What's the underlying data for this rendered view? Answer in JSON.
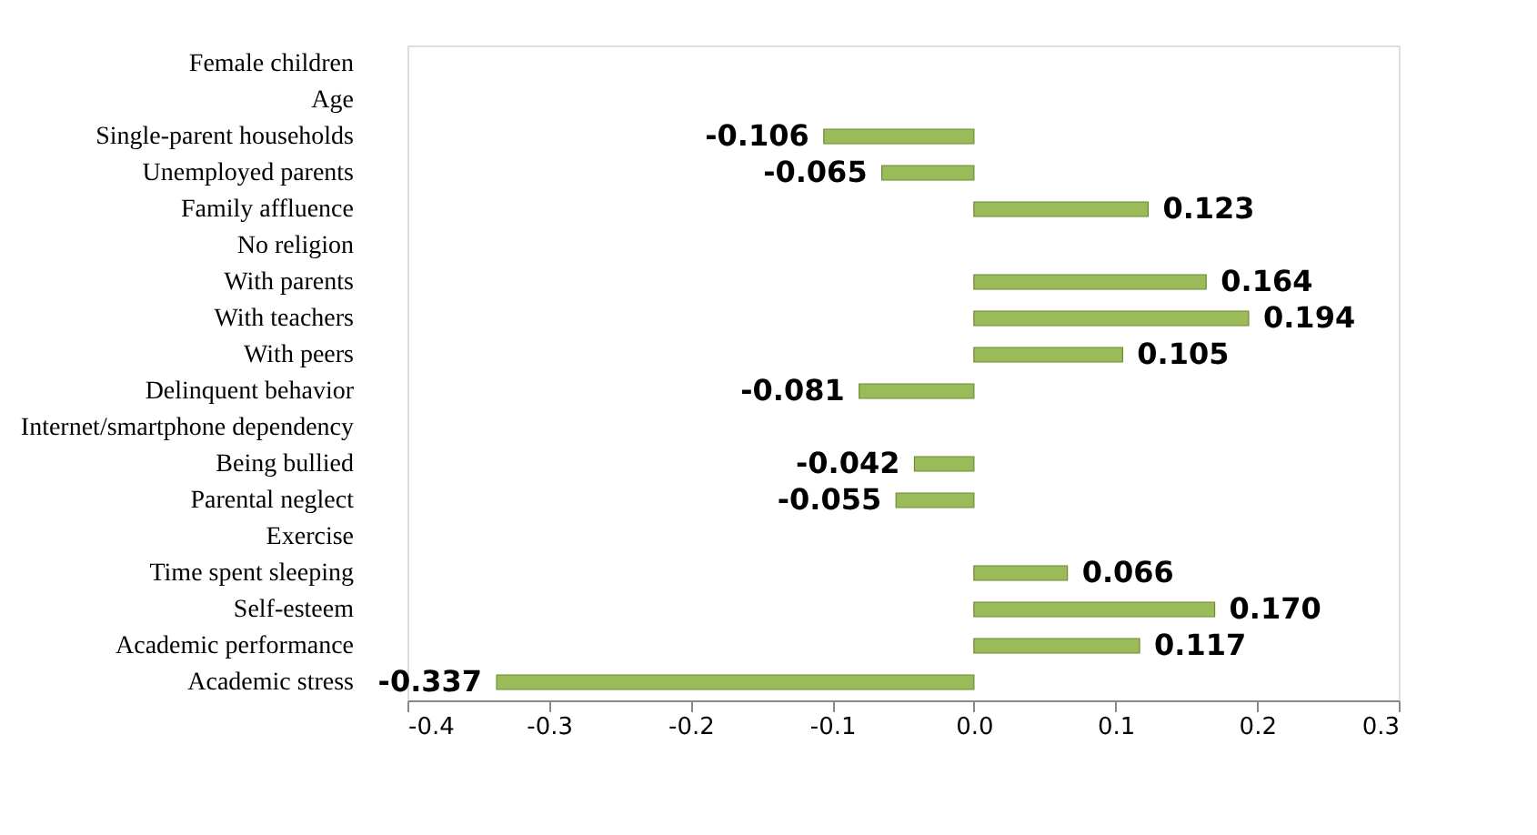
{
  "chart_data": {
    "type": "bar",
    "orientation": "horizontal",
    "categories": [
      "Female children",
      "Age",
      "Single-parent households",
      "Unemployed parents",
      "Family affluence",
      "No religion",
      "With parents",
      "With teachers",
      "With peers",
      "Delinquent behavior",
      "Internet/smartphone dependency",
      "Being bullied",
      "Parental neglect",
      "Exercise",
      "Time spent sleeping",
      "Self-esteem",
      "Academic performance",
      "Academic stress"
    ],
    "values": [
      null,
      null,
      -0.106,
      -0.065,
      0.123,
      null,
      0.164,
      0.194,
      0.105,
      -0.081,
      null,
      -0.042,
      -0.055,
      null,
      0.066,
      0.17,
      0.117,
      -0.337
    ],
    "value_labels": [
      null,
      null,
      "-0.106",
      "-0.065",
      "0.123",
      null,
      "0.164",
      "0.194",
      "0.105",
      "-0.081",
      null,
      "-0.042",
      "-0.055",
      null,
      "0.066",
      "0.170",
      "0.117",
      "-0.337"
    ],
    "color": "#9bbb59",
    "xlim": [
      -0.4,
      0.3
    ],
    "xticks": [
      {
        "value": -0.4,
        "label": "-0.4"
      },
      {
        "value": -0.3,
        "label": "-0.3"
      },
      {
        "value": -0.2,
        "label": "-0.2"
      },
      {
        "value": -0.1,
        "label": "-0.1"
      },
      {
        "value": 0,
        "label": "0.0"
      },
      {
        "value": 0.1,
        "label": "0.1"
      },
      {
        "value": 0.2,
        "label": "0.2"
      },
      {
        "value": 0.3,
        "label": "0.3"
      }
    ],
    "grid": false
  }
}
